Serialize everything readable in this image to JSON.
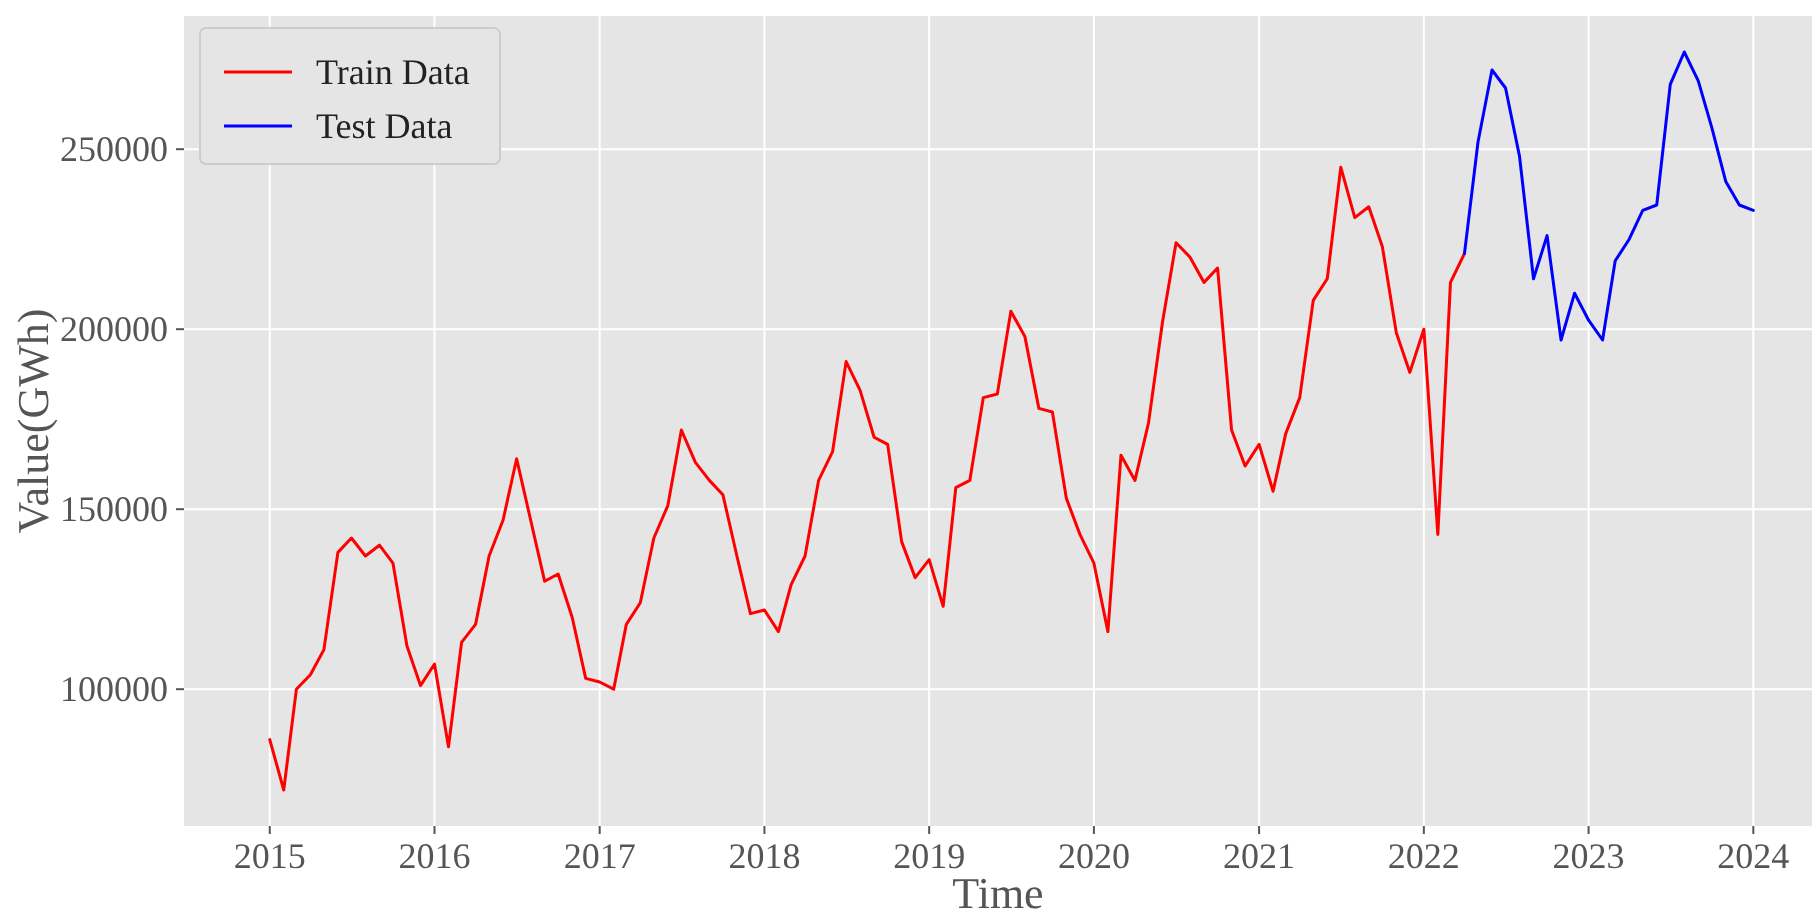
{
  "chart_data": {
    "type": "line",
    "xlabel": "Time",
    "ylabel": "Value(GWh)",
    "legend": "top left",
    "grid": true,
    "xlim": [
      "2014-06-25",
      "2024-05-10"
    ],
    "xticks": [
      {
        "value": "2015-01-01",
        "label": "2015"
      },
      {
        "value": "2016-01-01",
        "label": "2016"
      },
      {
        "value": "2017-01-01",
        "label": "2017"
      },
      {
        "value": "2018-01-01",
        "label": "2018"
      },
      {
        "value": "2019-01-01",
        "label": "2019"
      },
      {
        "value": "2020-01-01",
        "label": "2020"
      },
      {
        "value": "2021-01-01",
        "label": "2021"
      },
      {
        "value": "2022-01-01",
        "label": "2022"
      },
      {
        "value": "2023-01-01",
        "label": "2023"
      },
      {
        "value": "2024-01-01",
        "label": "2024"
      }
    ],
    "ylim": [
      62000,
      287000
    ],
    "yticks": [
      100000,
      150000,
      200000,
      250000
    ],
    "series": [
      {
        "name": "Train Data",
        "color": "#ff0000",
        "x": [
          "2015-01",
          "2015-02",
          "2015-03",
          "2015-04",
          "2015-05",
          "2015-06",
          "2015-07",
          "2015-08",
          "2015-09",
          "2015-10",
          "2015-11",
          "2015-12",
          "2016-01",
          "2016-02",
          "2016-03",
          "2016-04",
          "2016-05",
          "2016-06",
          "2016-07",
          "2016-08",
          "2016-09",
          "2016-10",
          "2016-11",
          "2016-12",
          "2017-01",
          "2017-02",
          "2017-03",
          "2017-04",
          "2017-05",
          "2017-06",
          "2017-07",
          "2017-08",
          "2017-09",
          "2017-10",
          "2017-11",
          "2017-12",
          "2018-01",
          "2018-02",
          "2018-03",
          "2018-04",
          "2018-05",
          "2018-06",
          "2018-07",
          "2018-08",
          "2018-09",
          "2018-10",
          "2018-11",
          "2018-12",
          "2019-01",
          "2019-02",
          "2019-03",
          "2019-04",
          "2019-05",
          "2019-06",
          "2019-07",
          "2019-08",
          "2019-09",
          "2019-10",
          "2019-11",
          "2019-12",
          "2020-01",
          "2020-02",
          "2020-03",
          "2020-04",
          "2020-05",
          "2020-06",
          "2020-07",
          "2020-08",
          "2020-09",
          "2020-10",
          "2020-11",
          "2020-12",
          "2021-01",
          "2021-02",
          "2021-03",
          "2021-04",
          "2021-05",
          "2021-06",
          "2021-07",
          "2021-08",
          "2021-09",
          "2021-10",
          "2021-11",
          "2021-12",
          "2022-01",
          "2022-02",
          "2022-03",
          "2022-04"
        ],
        "values": [
          86000,
          72000,
          100000,
          104000,
          111000,
          138000,
          142000,
          137000,
          140000,
          135000,
          112000,
          101000,
          107000,
          84000,
          113000,
          118000,
          137000,
          147000,
          164000,
          147000,
          130000,
          132000,
          120000,
          103000,
          102000,
          100000,
          118000,
          124000,
          142000,
          151000,
          172000,
          163000,
          158000,
          154000,
          137000,
          121000,
          122000,
          116000,
          129000,
          137000,
          158000,
          166000,
          191000,
          183000,
          170000,
          168000,
          141000,
          131000,
          136000,
          123000,
          156000,
          158000,
          181000,
          182000,
          205000,
          198000,
          178000,
          177000,
          153000,
          143000,
          135000,
          116000,
          165000,
          158000,
          174000,
          202000,
          224000,
          220000,
          213000,
          217000,
          172000,
          162000,
          168000,
          155000,
          171000,
          181000,
          208000,
          214000,
          245000,
          231000,
          234000,
          223000,
          199000,
          188000,
          200000,
          143000,
          213000,
          221000
        ]
      },
      {
        "name": "Test Data",
        "color": "#0000ff",
        "x": [
          "2022-04",
          "2022-05",
          "2022-06",
          "2022-07",
          "2022-08",
          "2022-09",
          "2022-10",
          "2022-11",
          "2022-12",
          "2023-01",
          "2023-02",
          "2023-03",
          "2023-04",
          "2023-05",
          "2023-06",
          "2023-07",
          "2023-08",
          "2023-09",
          "2023-10",
          "2023-11",
          "2023-12",
          "2024-01"
        ],
        "values": [
          221000,
          252000,
          272000,
          267000,
          248000,
          214000,
          226000,
          197000,
          210000,
          202500,
          197000,
          219000,
          225000,
          233000,
          234500,
          268000,
          277000,
          269000,
          256000,
          241000,
          234500,
          233000
        ]
      }
    ]
  }
}
